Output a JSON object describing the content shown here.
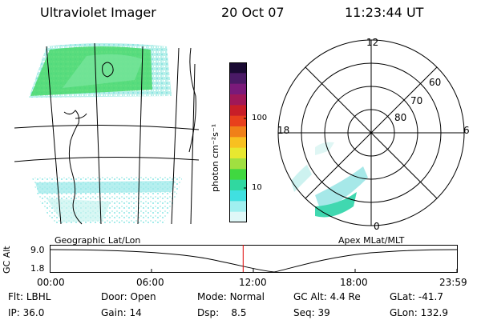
{
  "header": {
    "instrument": "Ultraviolet Imager",
    "date": "20 Oct 07",
    "time": "11:23:44 UT"
  },
  "colorbar": {
    "unit_label": "photon cm⁻²s⁻¹",
    "ticks": [
      "100",
      "10"
    ],
    "colors": [
      "#1a0a33",
      "#4a1a66",
      "#7a1a7a",
      "#a01858",
      "#c81e28",
      "#e8401c",
      "#f08018",
      "#f8c020",
      "#e8e830",
      "#a0e040",
      "#40d840",
      "#30d8a0",
      "#40e0e0",
      "#a0f0f0",
      "#e0f8f8"
    ]
  },
  "map_panel": {
    "projection_label": "Geographic Lat/Lon"
  },
  "polar_panel": {
    "projection_label": "Apex MLat/MLT",
    "mlt_labels": {
      "top": "12",
      "left": "18",
      "right": "6",
      "bottom": "0"
    },
    "lat_labels": [
      "60",
      "70",
      "80"
    ]
  },
  "altitude_strip": {
    "axis_label": "GC Alt",
    "y_ticks": [
      "9.0",
      "1.8"
    ],
    "time_ticks": [
      "00:00",
      "06:00",
      "12:00",
      "18:00",
      "23:59"
    ],
    "current_time_fraction": 0.475
  },
  "info": {
    "flt_label": "Flt:",
    "flt_value": "LBHL",
    "ip_label": "IP:",
    "ip_value": "36.0",
    "door_label": "Door:",
    "door_value": "Open",
    "gain_label": "Gain:",
    "gain_value": "14",
    "mode_label": "Mode:",
    "mode_value": "Normal",
    "dsp_label": "Dsp:",
    "dsp_value": "8.5",
    "gcalt_label": "GC Alt:",
    "gcalt_value": "4.4 Re",
    "seq_label": "Seq:",
    "seq_value": "39",
    "glat_label": "GLat:",
    "glat_value": "-41.7",
    "glon_label": "GLon:",
    "glon_value": "132.9"
  },
  "accent_colors": {
    "marker": "#dd0000",
    "aurora_green": "#3cd64a",
    "aurora_cyan": "#7fe6e6"
  }
}
